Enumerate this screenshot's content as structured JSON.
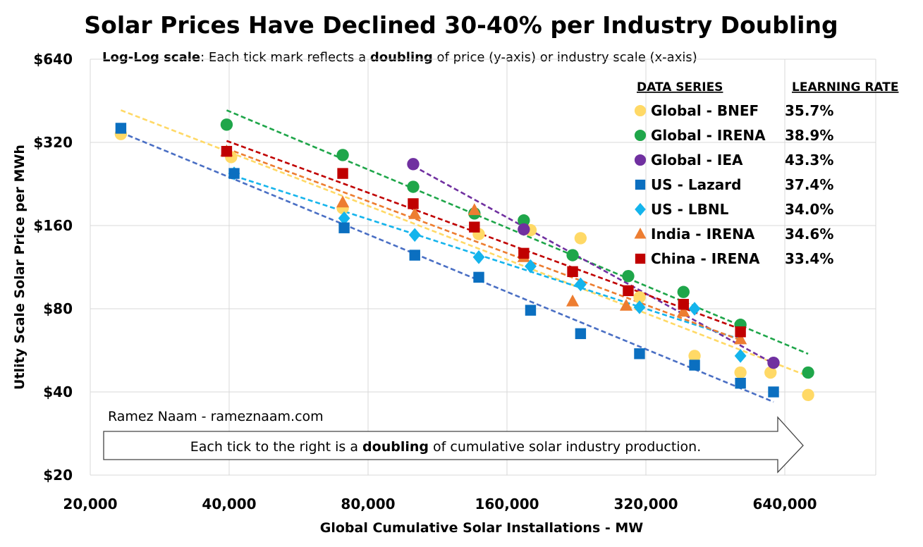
{
  "chart_data": {
    "type": "scatter",
    "title": "Solar Prices Have Declined 30-40% per Industry Doubling",
    "subtitle": {
      "part1": "Log-Log scale",
      "part2": ": Each tick mark reflects a ",
      "part3": "doubling",
      "part4": " of price (y-axis) or industry scale (x-axis)"
    },
    "xlabel": "Global Cumulative Solar Installations - MW",
    "ylabel": "Utlity Scale Solar Price per MWh",
    "x_scale": "log2",
    "y_scale": "log2",
    "xlim": [
      20000,
      1000000
    ],
    "ylim": [
      20,
      640
    ],
    "x_ticks": [
      20000,
      40000,
      80000,
      160000,
      320000,
      640000
    ],
    "x_tick_labels": [
      "20,000",
      "40,000",
      "80,000",
      "160,000",
      "320,000",
      "640,000"
    ],
    "y_ticks": [
      640,
      320,
      160,
      80,
      40,
      20
    ],
    "y_tick_labels": [
      "$640",
      "$320",
      "$160",
      "$80",
      "$40",
      "$20"
    ],
    "grid": true,
    "legend": {
      "placement": "top-right",
      "header_series": "DATA SERIES",
      "header_rate": "LEARNING RATE"
    },
    "trendlines": "power fit per series (dashed)",
    "series": [
      {
        "name": "Global - BNEF",
        "learning_rate": "35.7%",
        "marker": "circle",
        "color": "#FFD966",
        "line_color": "#FFD966",
        "points": [
          [
            23300,
            343
          ],
          [
            40400,
            283
          ],
          [
            70500,
            185
          ],
          [
            139000,
            149
          ],
          [
            180000,
            154
          ],
          [
            231000,
            144
          ],
          [
            310000,
            88
          ],
          [
            408000,
            54
          ],
          [
            513000,
            47
          ],
          [
            596000,
            47
          ],
          [
            719000,
            39
          ]
        ]
      },
      {
        "name": "Global - IRENA",
        "learning_rate": "38.9%",
        "marker": "circle",
        "color": "#1FA64A",
        "line_color": "#1FA64A",
        "points": [
          [
            39500,
            371
          ],
          [
            70500,
            288
          ],
          [
            100200,
            221
          ],
          [
            136000,
            177
          ],
          [
            174000,
            167
          ],
          [
            222000,
            125
          ],
          [
            293000,
            105
          ],
          [
            386000,
            92
          ],
          [
            513000,
            70
          ],
          [
            719000,
            47
          ]
        ]
      },
      {
        "name": "Global - IEA",
        "learning_rate": "43.3%",
        "marker": "circle",
        "color": "#7030A0",
        "line_color": "#7030A0",
        "points": [
          [
            100200,
            267
          ],
          [
            174000,
            155
          ],
          [
            605000,
            51
          ]
        ]
      },
      {
        "name": "US - Lazard",
        "learning_rate": "37.4%",
        "marker": "square",
        "color": "#0B6FC0",
        "line_color": "#4A6FC4",
        "points": [
          [
            23300,
            360
          ],
          [
            41000,
            247
          ],
          [
            71000,
            157
          ],
          [
            101000,
            125
          ],
          [
            139000,
            104
          ],
          [
            180000,
            79
          ],
          [
            231000,
            65
          ],
          [
            310000,
            55
          ],
          [
            408000,
            50
          ],
          [
            513000,
            43
          ],
          [
            605000,
            40
          ]
        ]
      },
      {
        "name": "US - LBNL",
        "learning_rate": "34.0%",
        "marker": "diamond",
        "color": "#14B4EC",
        "line_color": "#14B4EC",
        "points": [
          [
            41000,
            247
          ],
          [
            71000,
            170
          ],
          [
            101000,
            148
          ],
          [
            139000,
            123
          ],
          [
            180000,
            114
          ],
          [
            231000,
            98
          ],
          [
            310000,
            81
          ],
          [
            408000,
            80
          ],
          [
            513000,
            54
          ]
        ]
      },
      {
        "name": "India - IRENA",
        "learning_rate": "34.6%",
        "marker": "triangle",
        "color": "#ED7D31",
        "line_color": "#ED7D31",
        "points": [
          [
            39500,
            297
          ],
          [
            70500,
            194
          ],
          [
            101000,
            176
          ],
          [
            136000,
            182
          ],
          [
            174000,
            123
          ],
          [
            222000,
            85
          ],
          [
            290000,
            82
          ],
          [
            386000,
            78
          ],
          [
            513000,
            62
          ]
        ]
      },
      {
        "name": "China - IRENA",
        "learning_rate": "33.4%",
        "marker": "square",
        "color": "#C00000",
        "line_color": "#C00000",
        "points": [
          [
            39500,
            297
          ],
          [
            70500,
            247
          ],
          [
            100200,
            192
          ],
          [
            136000,
            158
          ],
          [
            174000,
            127
          ],
          [
            222000,
            109
          ],
          [
            293000,
            93
          ],
          [
            386000,
            83
          ],
          [
            513000,
            66
          ]
        ]
      }
    ],
    "annotations": {
      "credit": "Ramez Naam - rameznaam.com",
      "arrow_text_1": "Each tick to the right is a ",
      "arrow_text_2": "doubling",
      "arrow_text_3": " of cumulative solar industry production."
    }
  }
}
